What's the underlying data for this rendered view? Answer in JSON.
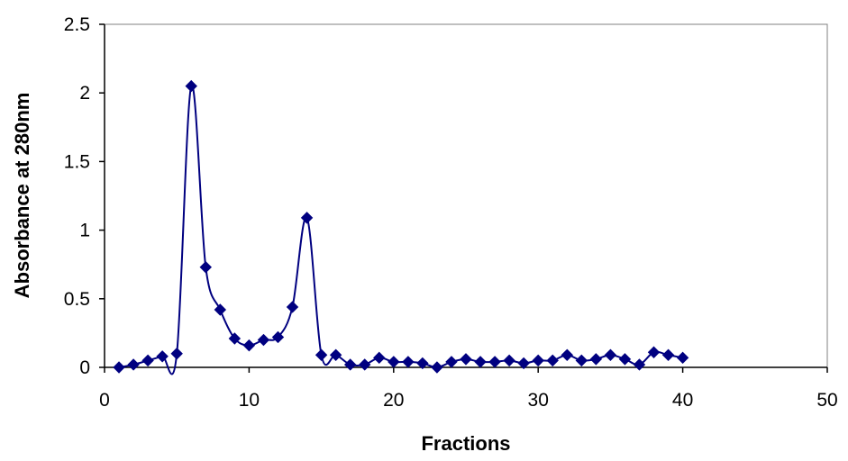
{
  "chart_data": {
    "type": "scatter",
    "title": "",
    "xlabel": "Fractions",
    "ylabel": "Absorbance at 280nm",
    "xlim": [
      0,
      50
    ],
    "ylim": [
      0,
      2.5
    ],
    "x_ticks": [
      "0",
      "10",
      "20",
      "30",
      "40",
      "50"
    ],
    "y_ticks": [
      "0",
      "0.5",
      "1",
      "1.5",
      "2",
      "2.5"
    ],
    "grid": false,
    "legend": "none",
    "line": "smooth",
    "marker": "diamond",
    "series": [
      {
        "color": "#000080",
        "x": [
          1,
          2,
          3,
          4,
          5,
          6,
          7,
          8,
          9,
          10,
          11,
          12,
          13,
          14,
          15,
          16,
          17,
          18,
          19,
          20,
          21,
          22,
          23,
          24,
          25,
          26,
          27,
          28,
          29,
          30,
          31,
          32,
          33,
          34,
          35,
          36,
          37,
          38,
          39,
          40
        ],
        "y": [
          0.0,
          0.02,
          0.05,
          0.08,
          0.1,
          2.05,
          0.73,
          0.42,
          0.21,
          0.16,
          0.2,
          0.22,
          0.44,
          1.09,
          0.09,
          0.09,
          0.02,
          0.02,
          0.07,
          0.04,
          0.04,
          0.03,
          0.0,
          0.04,
          0.06,
          0.04,
          0.04,
          0.05,
          0.03,
          0.05,
          0.05,
          0.09,
          0.05,
          0.06,
          0.09,
          0.06,
          0.02,
          0.11,
          0.09,
          0.07
        ]
      }
    ]
  }
}
